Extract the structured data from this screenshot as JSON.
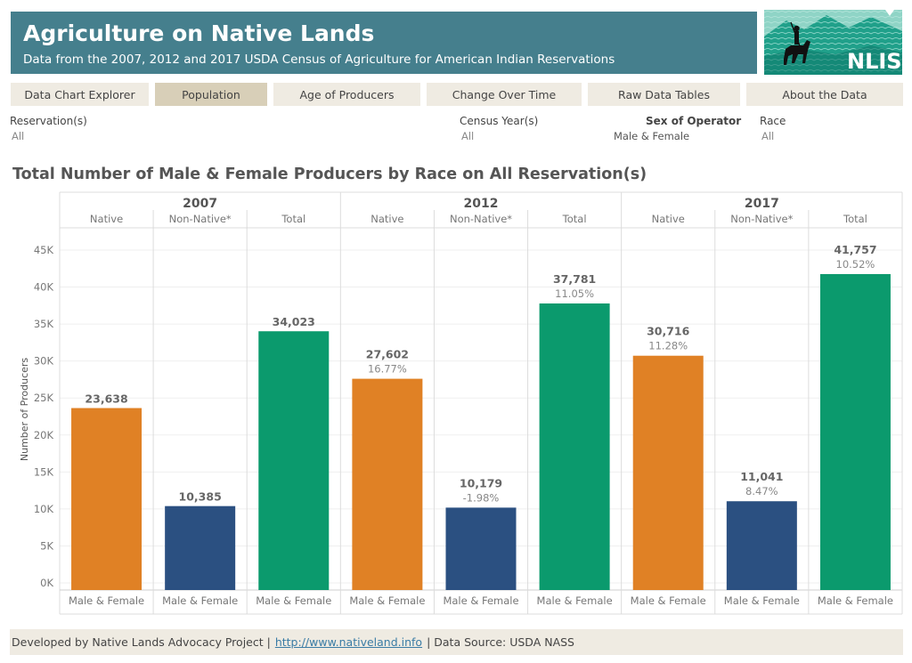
{
  "header": {
    "title": "Agriculture on Native Lands",
    "subtitle": "Data from the 2007, 2012 and 2017 USDA Census of Agriculture for American Indian Reservations",
    "logo_text": "NLIS"
  },
  "tabs": [
    {
      "label": "Data Chart Explorer",
      "active": false
    },
    {
      "label": "Population",
      "active": true
    },
    {
      "label": "Age of Producers",
      "active": false
    },
    {
      "label": "Change Over Time",
      "active": false
    },
    {
      "label": "Raw Data Tables",
      "active": false
    },
    {
      "label": "About the Data",
      "active": false
    }
  ],
  "filters": {
    "reservation": {
      "label": "Reservation(s)",
      "value": "All"
    },
    "census_year": {
      "label": "Census Year(s)",
      "value": "All"
    },
    "sex": {
      "label": "Sex of Operator",
      "value": "Male & Female"
    },
    "race": {
      "label": "Race",
      "value": "All"
    }
  },
  "chart_title": "Total Number of Male &  Female Producers by Race on All Reservation(s)",
  "chart_data": {
    "type": "bar",
    "ylabel": "Number of Producers",
    "ylim": [
      0,
      47000
    ],
    "yticks": [
      "0K",
      "5K",
      "10K",
      "15K",
      "20K",
      "25K",
      "30K",
      "35K",
      "40K",
      "45K"
    ],
    "grid": true,
    "sex_label": "Male &  Female",
    "years": [
      "2007",
      "2012",
      "2017"
    ],
    "groups": [
      "Native",
      "Non-Native*",
      "Total"
    ],
    "colors": {
      "Native": "#e08125",
      "Non-Native*": "#2b5081",
      "Total": "#0b9a6d"
    },
    "bars": [
      {
        "year": "2007",
        "group": "Native",
        "value": 23638,
        "label": "23,638",
        "pct": ""
      },
      {
        "year": "2007",
        "group": "Non-Native*",
        "value": 10385,
        "label": "10,385",
        "pct": ""
      },
      {
        "year": "2007",
        "group": "Total",
        "value": 34023,
        "label": "34,023",
        "pct": ""
      },
      {
        "year": "2012",
        "group": "Native",
        "value": 27602,
        "label": "27,602",
        "pct": "16.77%"
      },
      {
        "year": "2012",
        "group": "Non-Native*",
        "value": 10179,
        "label": "10,179",
        "pct": "-1.98%"
      },
      {
        "year": "2012",
        "group": "Total",
        "value": 37781,
        "label": "37,781",
        "pct": "11.05%"
      },
      {
        "year": "2017",
        "group": "Native",
        "value": 30716,
        "label": "30,716",
        "pct": "11.28%"
      },
      {
        "year": "2017",
        "group": "Non-Native*",
        "value": 11041,
        "label": "11,041",
        "pct": "8.47%"
      },
      {
        "year": "2017",
        "group": "Total",
        "value": 41757,
        "label": "41,757",
        "pct": "10.52%"
      }
    ]
  },
  "footer": {
    "prefix": "Developed by Native Lands Advocacy Project |",
    "link": "http://www.nativeland.info",
    "suffix": "| Data Source: USDA NASS"
  }
}
